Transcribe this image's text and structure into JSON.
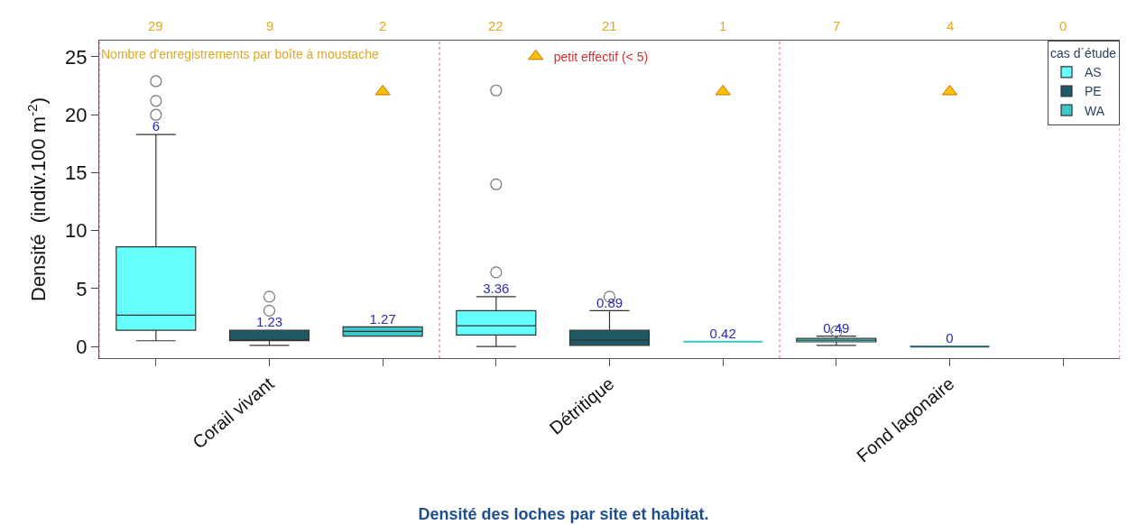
{
  "chart_data": {
    "type": "box",
    "title": "Densité des loches par site et habitat.",
    "ylabel": "Densité  (indiv.100 m$^{-2}$)",
    "x2label": "Nombre d'enregistrements par boîte à moustache",
    "legend_title": "cas d´étude",
    "categories": [
      null,
      "Corail vivant",
      null,
      null,
      "Détritique",
      null,
      null,
      "Fond lagonaire",
      null
    ],
    "ylim": [
      -1,
      26.4
    ],
    "yticks": [
      0,
      5,
      10,
      15,
      20,
      25
    ],
    "legend": "top right",
    "annotations": [
      "29",
      "9",
      "2",
      "22",
      "21",
      "1",
      "7",
      "4",
      "0"
    ],
    "series": [
      {
        "name": "AS",
        "color": "#66ffff",
        "boxes": [
          {
            "low": 0.5,
            "q1": 1.4,
            "median": 2.7,
            "q3": 8.6,
            "high": 18.3,
            "outliers": [
              20.0,
              21.2,
              22.9
            ]
          },
          null,
          null,
          {
            "low": 0.0,
            "q1": 1.0,
            "median": 1.8,
            "q3": 3.1,
            "high": 4.3,
            "outliers": [
              6.4,
              14.0,
              22.1
            ]
          },
          null,
          null,
          {
            "low": 0.1,
            "q1": 0.4,
            "median": 0.55,
            "q3": 0.7,
            "high": 0.9,
            "outliers": [
              1.3
            ]
          },
          null,
          null
        ],
        "value_labels": [
          "6",
          null,
          null,
          "3.36",
          null,
          null,
          "0.49",
          null,
          null
        ]
      },
      {
        "name": "PE",
        "color": "#1e5a66",
        "boxes": [
          null,
          {
            "low": 0.1,
            "q1": 0.5,
            "median": 0.55,
            "q3": 1.4,
            "high": 1.4,
            "outliers": [
              3.1,
              4.3
            ]
          },
          null,
          null,
          {
            "low": 0.1,
            "q1": 0.1,
            "median": 0.55,
            "q3": 1.4,
            "high": 3.1,
            "outliers": [
              4.3
            ]
          },
          null,
          null,
          {
            "low": 0,
            "q1": 0,
            "median": 0,
            "q3": 0,
            "high": 0
          },
          null
        ],
        "value_labels": [
          null,
          "1.23",
          null,
          null,
          "0.89",
          null,
          null,
          "0",
          null
        ]
      },
      {
        "name": "WA",
        "color": "#3cc8c8",
        "boxes": [
          null,
          null,
          {
            "low": 0.9,
            "q1": 0.9,
            "median": 1.3,
            "q3": 1.7,
            "high": 1.7
          },
          null,
          null,
          {
            "low": 0.42,
            "q1": 0.42,
            "median": 0.42,
            "q3": 0.42,
            "high": 0.42
          },
          null,
          null,
          null
        ],
        "value_labels": [
          null,
          null,
          "1.27",
          null,
          null,
          "0.42",
          null,
          null,
          null
        ]
      },
      {
        "name": "petit effectif (< 5)",
        "type": "scatter",
        "marker": "triangle",
        "color": "#ffc000",
        "values": [
          null,
          null,
          22,
          null,
          null,
          22,
          null,
          22,
          null
        ]
      }
    ]
  }
}
